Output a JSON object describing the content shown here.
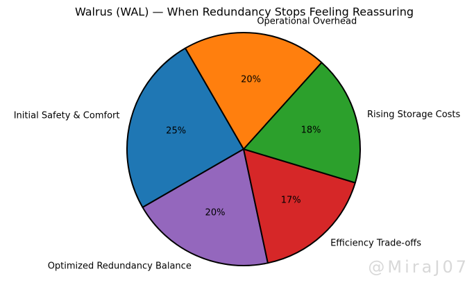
{
  "chart_data": {
    "type": "pie",
    "title": "Walrus (WAL) — When Redundancy Stops Feeling Reassuring",
    "categories": [
      "Initial Safety & Comfort",
      "Optimized Redundancy Balance",
      "Efficiency Trade-offs",
      "Rising Storage Costs",
      "Operational Overhead"
    ],
    "values": [
      25,
      20,
      17,
      18,
      20
    ],
    "value_labels": [
      "25%",
      "20%",
      "17%",
      "18%",
      "20%"
    ],
    "colors": [
      "#1f77b4",
      "#9467bd",
      "#d62728",
      "#2ca02c",
      "#ff7f0e"
    ],
    "startangle": 120
  },
  "watermark": "@MiraJ07"
}
